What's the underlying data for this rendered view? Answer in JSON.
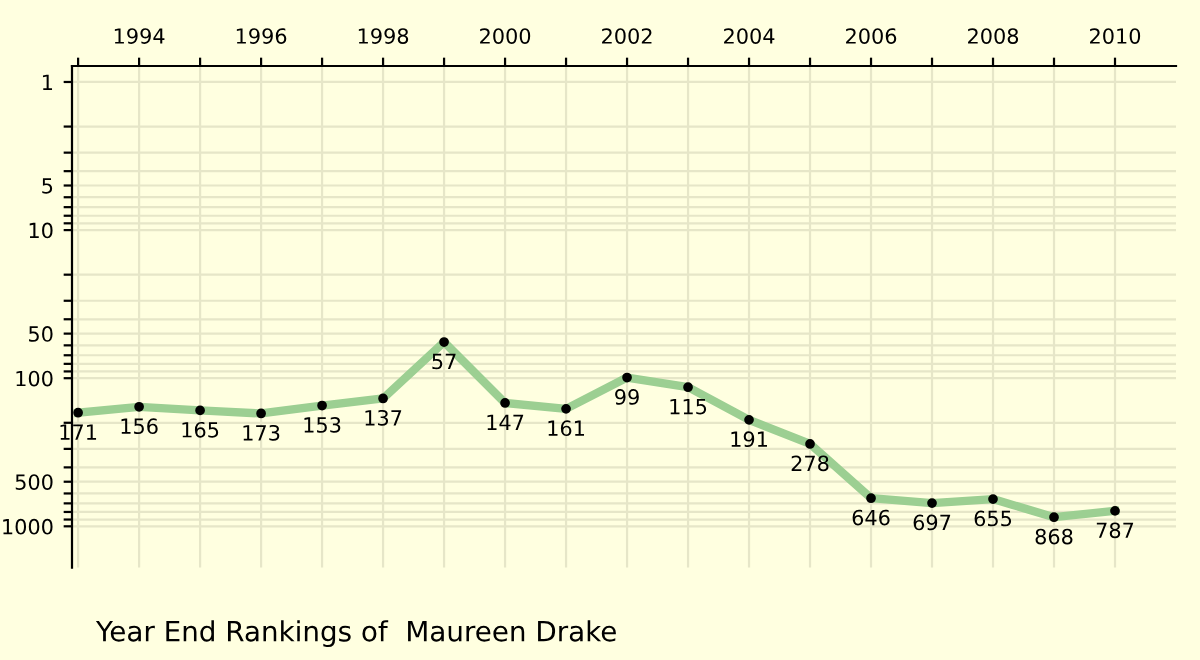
{
  "chart_data": {
    "type": "line",
    "title": "Year End Rankings of  Maureen Drake",
    "x": [
      1993,
      1994,
      1995,
      1996,
      1997,
      1998,
      1999,
      2000,
      2001,
      2002,
      2003,
      2004,
      2005,
      2006,
      2007,
      2008,
      2009,
      2010
    ],
    "series": [
      {
        "color": "#9ccf92",
        "values": [
          171,
          156,
          165,
          173,
          153,
          137,
          57,
          147,
          161,
          99,
          115,
          191,
          278,
          646,
          697,
          655,
          868,
          787
        ]
      }
    ],
    "data_labels": true,
    "marker": "circle",
    "line_style": "solid",
    "log": "y",
    "grid": true,
    "xlim": [
      1992.9,
      2011
    ],
    "ylim": [
      1900,
      0.78
    ],
    "xticks": [
      {
        "value": 1993,
        "label": null
      },
      1994,
      {
        "value": 1995,
        "label": null
      },
      1996,
      {
        "value": 1997,
        "label": null
      },
      1998,
      {
        "value": 1999,
        "label": null
      },
      2000,
      {
        "value": 2001,
        "label": null
      },
      2002,
      {
        "value": 2003,
        "label": null
      },
      2004,
      {
        "value": 2005,
        "label": null
      },
      2006,
      {
        "value": 2007,
        "label": null
      },
      2008,
      {
        "value": 2009,
        "label": null
      },
      2010
    ],
    "yticks": [
      1,
      {
        "value": 2,
        "label": null
      },
      {
        "value": 3,
        "label": null
      },
      {
        "value": 4,
        "label": null
      },
      5,
      {
        "value": 6,
        "label": null
      },
      {
        "value": 7,
        "label": null
      },
      {
        "value": 8,
        "label": null
      },
      {
        "value": 9,
        "label": null
      },
      10,
      {
        "value": 20,
        "label": null
      },
      {
        "value": 30,
        "label": null
      },
      {
        "value": 40,
        "label": null
      },
      50,
      {
        "value": 60,
        "label": null
      },
      {
        "value": 70,
        "label": null
      },
      {
        "value": 80,
        "label": null
      },
      {
        "value": 90,
        "label": null
      },
      100,
      {
        "value": 200,
        "label": null
      },
      {
        "value": 300,
        "label": null
      },
      {
        "value": 400,
        "label": null
      },
      500,
      {
        "value": 600,
        "label": null
      },
      {
        "value": 700,
        "label": null
      },
      {
        "value": 800,
        "label": null
      },
      {
        "value": 900,
        "label": null
      },
      1000
    ]
  }
}
